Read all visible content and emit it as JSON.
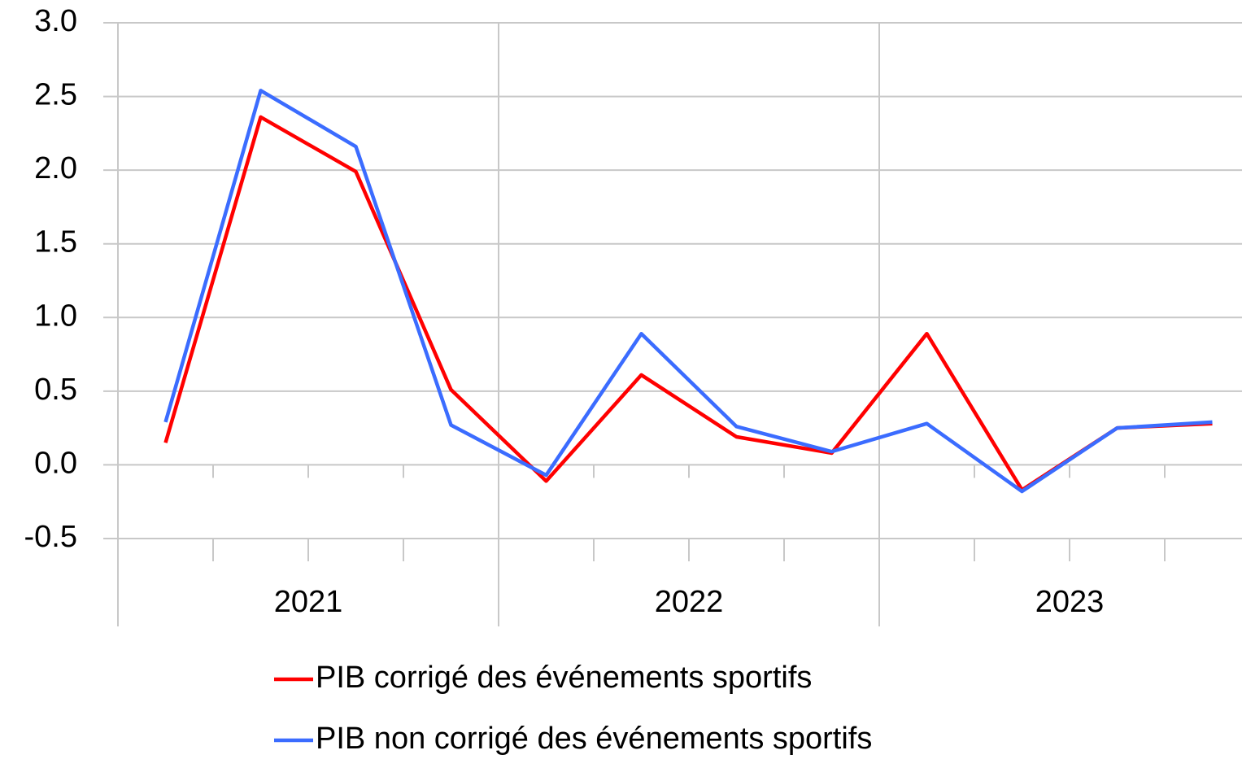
{
  "chart_data": {
    "type": "line",
    "categories": [
      null,
      null,
      null,
      null,
      null,
      null,
      null,
      null,
      null,
      null,
      null,
      null
    ],
    "group_labels": [
      "2021",
      "2022",
      "2023"
    ],
    "series": [
      {
        "name": "PIB corrigé des événements sportifs",
        "color": "#ff0000",
        "values": [
          0.15,
          2.36,
          1.99,
          0.51,
          -0.11,
          0.61,
          0.19,
          0.08,
          0.89,
          -0.17,
          0.25,
          0.28
        ]
      },
      {
        "name": "PIB non corrigé des événements sportifs",
        "color": "#3b6cff",
        "values": [
          0.29,
          2.54,
          2.16,
          0.27,
          -0.07,
          0.89,
          0.26,
          0.09,
          0.28,
          -0.18,
          0.25,
          0.29
        ]
      }
    ],
    "ylim": [
      -0.5,
      3
    ],
    "yticks": [
      -0.5,
      {
        "value": 0,
        "label": "0.0"
      },
      0.5,
      {
        "value": 1,
        "label": "1.0"
      },
      1.5,
      {
        "value": 2,
        "label": "2.0"
      },
      2.5,
      {
        "value": 3,
        "label": "3.0"
      }
    ],
    "grid": true,
    "legend": "bottom"
  }
}
